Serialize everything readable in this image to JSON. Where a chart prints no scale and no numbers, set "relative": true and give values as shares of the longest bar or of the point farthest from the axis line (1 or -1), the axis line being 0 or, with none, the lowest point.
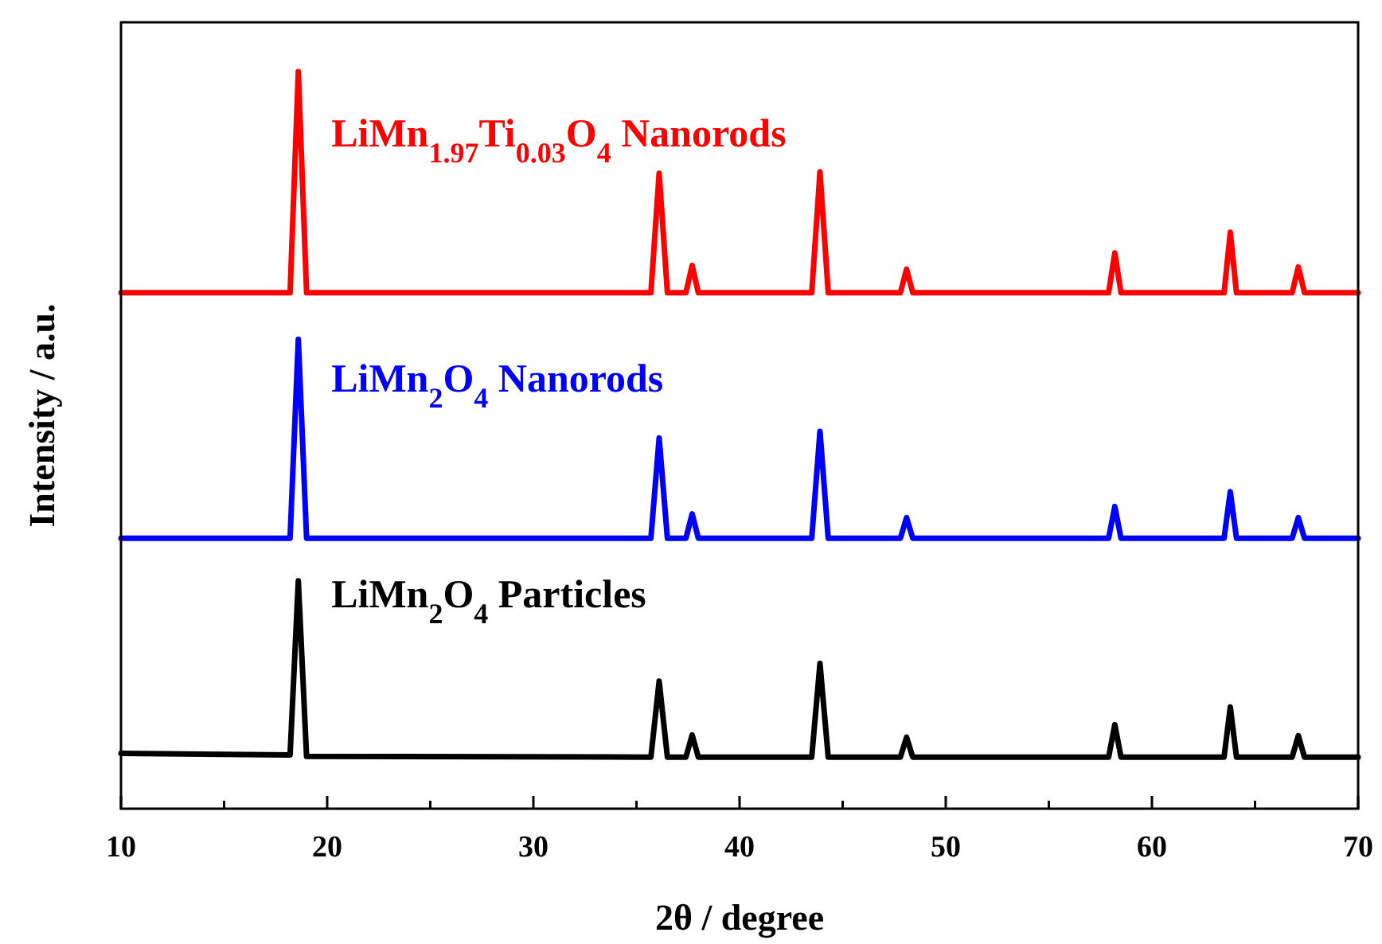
{
  "chart_data": {
    "type": "line",
    "relative": true,
    "xlabel": "2θ / degree",
    "ylabel": "Intensity / a.u.",
    "xlim": [
      10,
      70
    ],
    "xticks": [
      10,
      {
        "value": 15,
        "label": null
      },
      20,
      {
        "value": 25,
        "label": null
      },
      30,
      {
        "value": 35,
        "label": null
      },
      40,
      {
        "value": 45,
        "label": null
      },
      50,
      {
        "value": 55,
        "label": null
      },
      60,
      {
        "value": 65,
        "label": null
      },
      70
    ],
    "tick_labels": "x",
    "grid": false,
    "marker": "none",
    "line_style": "solid",
    "series": [
      {
        "name": "LiMn$_{2}$O$_{4}$ Particles",
        "color": "#000000",
        "x": [
          10,
          18.2,
          18.6,
          19.0,
          35.7,
          36.1,
          36.5,
          37.4,
          37.7,
          38.0,
          43.5,
          43.9,
          44.3,
          47.8,
          48.1,
          48.4,
          57.9,
          58.2,
          58.5,
          63.5,
          63.8,
          64.1,
          66.8,
          67.1,
          67.4,
          70
        ],
        "values": [
          0.075,
          0.073,
          0.309,
          0.071,
          0.07,
          0.173,
          0.07,
          0.07,
          0.1,
          0.07,
          0.07,
          0.197,
          0.07,
          0.07,
          0.097,
          0.07,
          0.07,
          0.114,
          0.07,
          0.07,
          0.138,
          0.07,
          0.07,
          0.099,
          0.07,
          0.07
        ]
      },
      {
        "name": "LiMn$_{2}$O$_{4}$ Nanorods",
        "color": "#0000ff",
        "x": [
          10,
          18.2,
          18.6,
          19.0,
          35.7,
          36.1,
          36.5,
          37.4,
          37.7,
          38.0,
          43.5,
          43.9,
          44.3,
          47.8,
          48.1,
          48.4,
          57.9,
          58.2,
          58.5,
          63.5,
          63.8,
          64.1,
          66.8,
          67.1,
          67.4,
          70
        ],
        "values": [
          0.367,
          0.367,
          0.637,
          0.367,
          0.367,
          0.503,
          0.367,
          0.367,
          0.4,
          0.367,
          0.367,
          0.512,
          0.367,
          0.367,
          0.395,
          0.367,
          0.367,
          0.41,
          0.367,
          0.367,
          0.43,
          0.367,
          0.367,
          0.395,
          0.367,
          0.367
        ]
      },
      {
        "name": "LiMn$_{1.97}$Ti$_{0.03}$O$_{4}$ Nanorods",
        "color": "#ff0000",
        "x": [
          10,
          18.2,
          18.6,
          19.0,
          35.7,
          36.1,
          36.5,
          37.4,
          37.7,
          38.0,
          43.5,
          43.9,
          44.3,
          47.8,
          48.1,
          48.4,
          57.9,
          58.2,
          58.5,
          63.5,
          63.8,
          64.1,
          66.8,
          67.1,
          67.4,
          70
        ],
        "values": [
          0.7,
          0.7,
          1,
          0.7,
          0.7,
          0.862,
          0.7,
          0.7,
          0.737,
          0.7,
          0.7,
          0.864,
          0.7,
          0.7,
          0.732,
          0.7,
          0.7,
          0.754,
          0.7,
          0.7,
          0.782,
          0.7,
          0.7,
          0.735,
          0.7,
          0.7
        ]
      }
    ]
  }
}
